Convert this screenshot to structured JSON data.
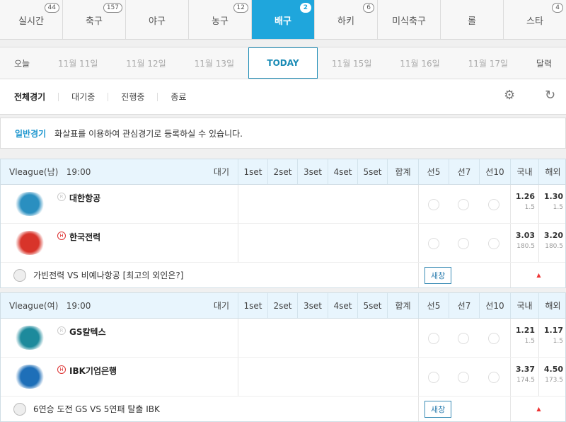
{
  "tabs": [
    {
      "label": "실시간",
      "count": "44"
    },
    {
      "label": "축구",
      "count": "157"
    },
    {
      "label": "야구",
      "count": ""
    },
    {
      "label": "농구",
      "count": "12"
    },
    {
      "label": "배구",
      "count": "2",
      "active": true
    },
    {
      "label": "하키",
      "count": "6"
    },
    {
      "label": "미식축구",
      "count": ""
    },
    {
      "label": "롤",
      "count": ""
    },
    {
      "label": "스타",
      "count": "4"
    }
  ],
  "dates": {
    "today_link": "오늘",
    "items": [
      "11월 11일",
      "11월 12일",
      "11월 13일",
      "TODAY",
      "11월 15일",
      "11월 16일",
      "11월 17일"
    ],
    "calendar": "달력"
  },
  "filters": [
    "전체경기",
    "대기중",
    "진행중",
    "종료"
  ],
  "notice": {
    "label": "일반경기",
    "text": "화살표를 이용하여 관심경기로 등록하실 수 있습니다."
  },
  "columns": [
    "1set",
    "2set",
    "3set",
    "4set",
    "5set",
    "합계",
    "선5",
    "선7",
    "선10",
    "국내",
    "해외"
  ],
  "games": [
    {
      "league": "Vleague(남)",
      "time": "19:00",
      "status": "대기",
      "teams": [
        {
          "name": "대한항공",
          "mark": "R",
          "domestic": "1.26",
          "domestic_sub": "1.5",
          "overseas": "1.30",
          "overseas_sub": "1.5",
          "logo_color": "#2a8fc0"
        },
        {
          "name": "한국전력",
          "mark": "H",
          "domestic": "3.03",
          "domestic_sub": "180.5",
          "overseas": "3.20",
          "overseas_sub": "180.5",
          "logo_color": "#d8342a"
        }
      ],
      "title": "가빈전력 VS 비예나항공 [최고의 외인은?]",
      "new_window": "새창"
    },
    {
      "league": "Vleague(여)",
      "time": "19:00",
      "status": "대기",
      "teams": [
        {
          "name": "GS칼텍스",
          "mark": "R",
          "domestic": "1.21",
          "domestic_sub": "1.5",
          "overseas": "1.17",
          "overseas_sub": "1.5",
          "logo_color": "#1d8a9c"
        },
        {
          "name": "IBK기업은행",
          "mark": "H",
          "domestic": "3.37",
          "domestic_sub": "174.5",
          "overseas": "4.50",
          "overseas_sub": "173.5",
          "logo_color": "#1e6fb8"
        }
      ],
      "title": "6연승 도전 GS VS 5연패 탈출 IBK",
      "new_window": "새창"
    }
  ]
}
